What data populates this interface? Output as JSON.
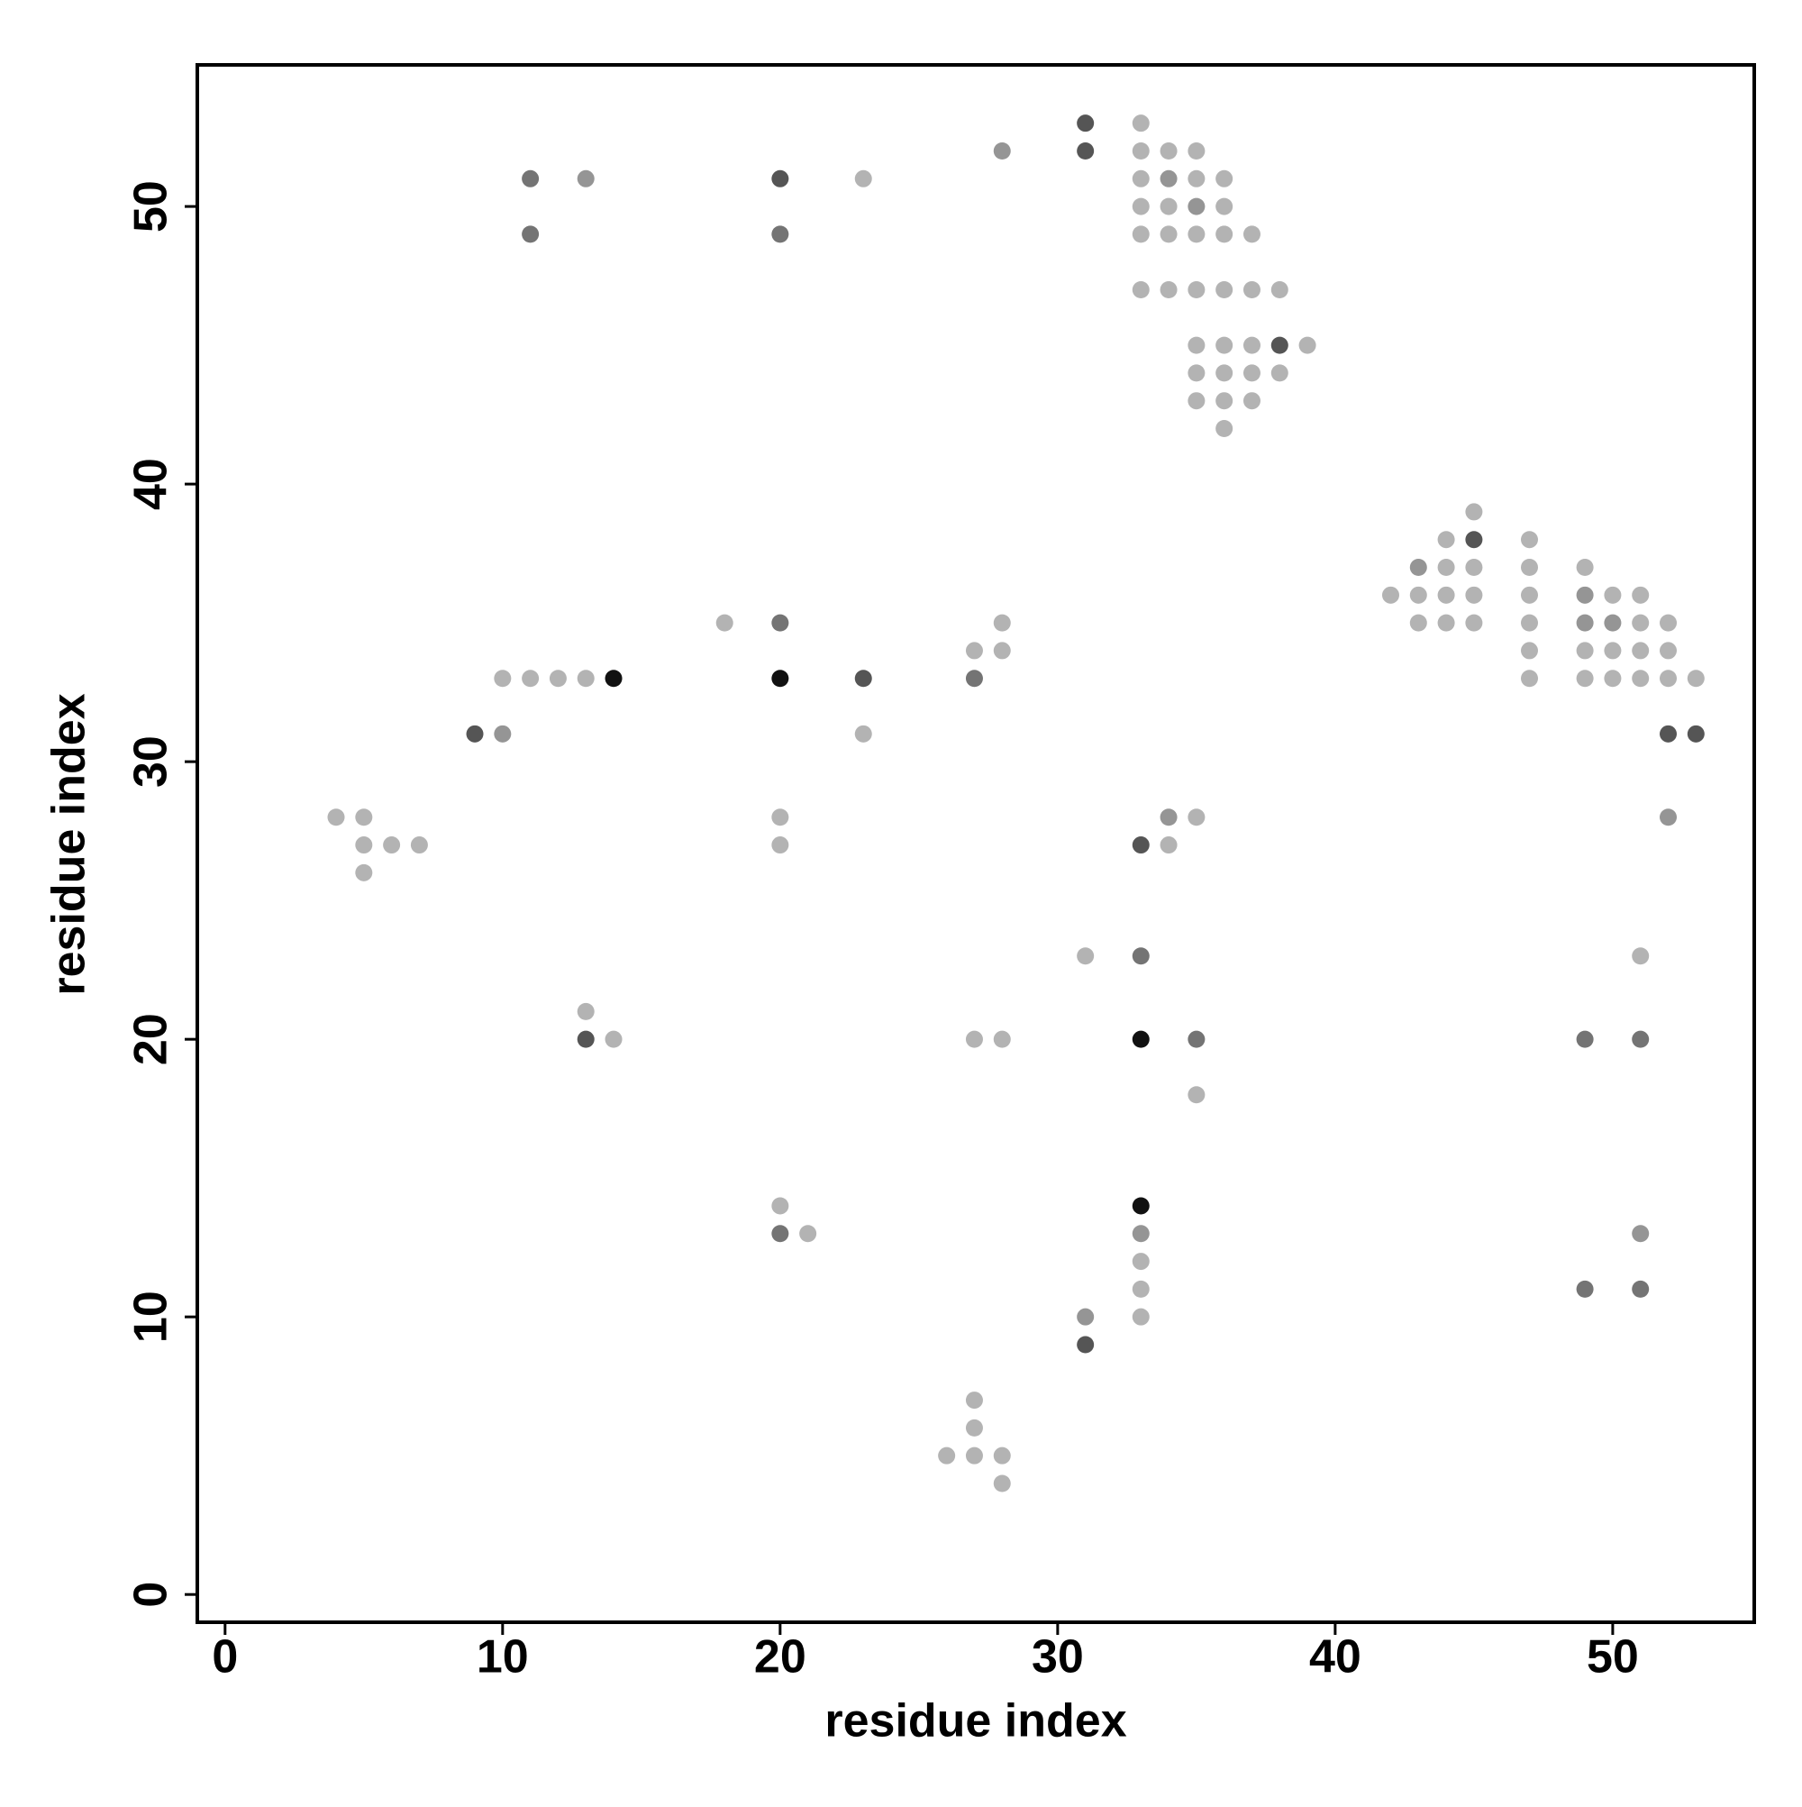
{
  "chart_data": {
    "type": "scatter",
    "xlabel": "residue index",
    "ylabel": "residue index",
    "xlim": [
      -1,
      55.1
    ],
    "ylim": [
      -1,
      55.1
    ],
    "xticks": [
      0,
      10,
      20,
      30,
      40,
      50
    ],
    "yticks": [
      0,
      10,
      20,
      30,
      40,
      50
    ],
    "series": [
      {
        "color": "#b3b3b3",
        "x": [
          33,
          33,
          34,
          35,
          23,
          33,
          35,
          36,
          33,
          34,
          36,
          33,
          34,
          35,
          36,
          37,
          33,
          34,
          35,
          36,
          37,
          38,
          35,
          36,
          37,
          39,
          35,
          36,
          37,
          38,
          35,
          36,
          37,
          36,
          45,
          44,
          47,
          44,
          45,
          47,
          49,
          42,
          43,
          44,
          45,
          47,
          50,
          51,
          18,
          28,
          43,
          44,
          45,
          47,
          51,
          52,
          27,
          28,
          47,
          49,
          50,
          51,
          52,
          10,
          11,
          12,
          13,
          47,
          49,
          50,
          51,
          52,
          53,
          23,
          4,
          5,
          20,
          35,
          5,
          6,
          7,
          20,
          34,
          5,
          31,
          51,
          13,
          14,
          27,
          28,
          35,
          20,
          21,
          33,
          33,
          33,
          27,
          27,
          26,
          27,
          28,
          28
        ],
        "y": [
          53,
          52,
          52,
          52,
          51,
          51,
          51,
          51,
          50,
          50,
          50,
          49,
          49,
          49,
          49,
          49,
          47,
          47,
          47,
          47,
          47,
          47,
          45,
          45,
          45,
          45,
          44,
          44,
          44,
          44,
          43,
          43,
          43,
          42,
          39,
          38,
          38,
          37,
          37,
          37,
          37,
          36,
          36,
          36,
          36,
          36,
          36,
          36,
          35,
          35,
          35,
          35,
          35,
          35,
          35,
          35,
          34,
          34,
          34,
          34,
          34,
          34,
          34,
          33,
          33,
          33,
          33,
          33,
          33,
          33,
          33,
          33,
          33,
          31,
          28,
          28,
          28,
          28,
          27,
          27,
          27,
          27,
          27,
          26,
          23,
          23,
          21,
          20,
          20,
          20,
          18,
          14,
          13,
          12,
          11,
          10,
          7,
          6,
          5,
          5,
          5,
          4
        ]
      },
      {
        "color": "#959595",
        "x": [
          28,
          13,
          34,
          35,
          43,
          49,
          49,
          50,
          10,
          34,
          52,
          33,
          51,
          31
        ],
        "y": [
          52,
          51,
          51,
          50,
          37,
          36,
          35,
          35,
          31,
          28,
          28,
          13,
          13,
          10
        ]
      },
      {
        "color": "#747474",
        "x": [
          11,
          11,
          20,
          20,
          27,
          33,
          35,
          49,
          51,
          20,
          49,
          51
        ],
        "y": [
          51,
          49,
          49,
          35,
          33,
          23,
          20,
          20,
          20,
          13,
          11,
          11
        ]
      },
      {
        "color": "#555555",
        "x": [
          31,
          31,
          20,
          38,
          45,
          23,
          9,
          52,
          53,
          33,
          13,
          31
        ],
        "y": [
          53,
          52,
          51,
          45,
          38,
          33,
          31,
          31,
          31,
          27,
          20,
          9
        ]
      },
      {
        "color": "#111111",
        "x": [
          14,
          20,
          33,
          33
        ],
        "y": [
          33,
          33,
          20,
          14
        ]
      }
    ]
  }
}
